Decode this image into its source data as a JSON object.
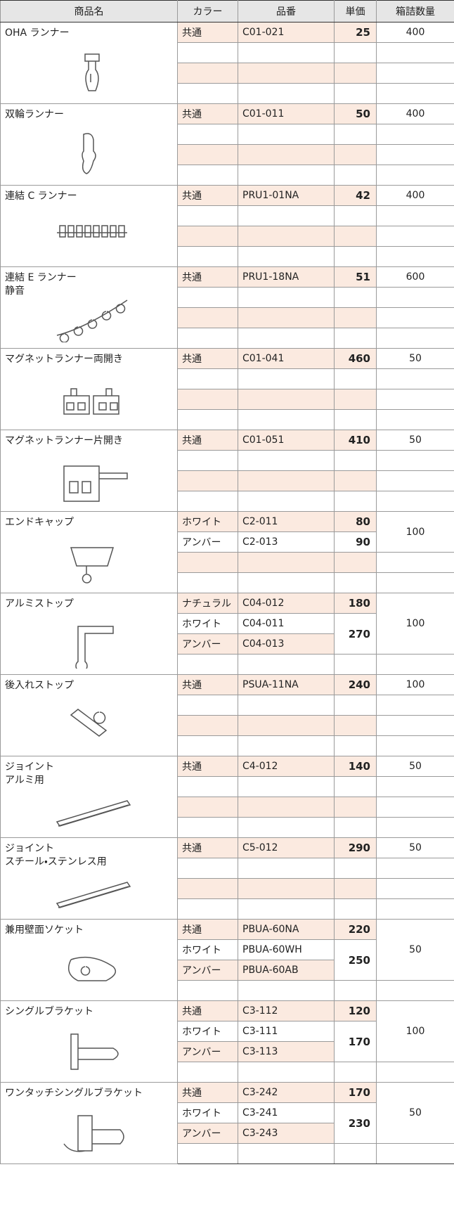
{
  "header": [
    "商品名",
    "カラー",
    "品番",
    "単価",
    "箱詰数量"
  ],
  "products": [
    {
      "name": [
        "OHA ランナー"
      ],
      "groups": [
        {
          "price": 25,
          "items": [
            {
              "color": "共通",
              "code": "C01-021"
            }
          ]
        }
      ],
      "box": 400
    },
    {
      "name": [
        "双輪ランナー"
      ],
      "groups": [
        {
          "price": 50,
          "items": [
            {
              "color": "共通",
              "code": "C01-011"
            }
          ]
        }
      ],
      "box": 400
    },
    {
      "name": [
        "連結 C ランナー"
      ],
      "groups": [
        {
          "price": 42,
          "items": [
            {
              "color": "共通",
              "code": "PRU1-01NA"
            }
          ]
        }
      ],
      "box": 400
    },
    {
      "name": [
        "連結 E ランナー",
        "静音"
      ],
      "groups": [
        {
          "price": 51,
          "items": [
            {
              "color": "共通",
              "code": "PRU1-18NA"
            }
          ]
        }
      ],
      "box": 600
    },
    {
      "name": [
        "マグネットランナー両開き"
      ],
      "groups": [
        {
          "price": 460,
          "items": [
            {
              "color": "共通",
              "code": "C01-041"
            }
          ]
        }
      ],
      "box": 50
    },
    {
      "name": [
        "マグネットランナー片開き"
      ],
      "groups": [
        {
          "price": 410,
          "items": [
            {
              "color": "共通",
              "code": "C01-051"
            }
          ]
        }
      ],
      "box": 50
    },
    {
      "name": [
        "エンドキャップ"
      ],
      "groups": [
        {
          "price": 80,
          "items": [
            {
              "color": "ホワイト",
              "code": "C2-011"
            }
          ]
        },
        {
          "price": 90,
          "items": [
            {
              "color": "アンバー",
              "code": "C2-013"
            }
          ]
        }
      ],
      "box": 100
    },
    {
      "name": [
        "アルミストップ"
      ],
      "groups": [
        {
          "price": 180,
          "items": [
            {
              "color": "ナチュラル",
              "code": "C04-012"
            }
          ]
        },
        {
          "price": 270,
          "items": [
            {
              "color": "ホワイト",
              "code": "C04-011"
            },
            {
              "color": "アンバー",
              "code": "C04-013"
            }
          ]
        }
      ],
      "box": 100
    },
    {
      "name": [
        "後入れストップ"
      ],
      "groups": [
        {
          "price": 240,
          "items": [
            {
              "color": "共通",
              "code": "PSUA-11NA"
            }
          ]
        }
      ],
      "box": 100
    },
    {
      "name": [
        "ジョイント",
        "アルミ用"
      ],
      "groups": [
        {
          "price": 140,
          "items": [
            {
              "color": "共通",
              "code": "C4-012"
            }
          ]
        }
      ],
      "box": 50
    },
    {
      "name": [
        "ジョイント",
        "スチール・ステンレス用"
      ],
      "groups": [
        {
          "price": 290,
          "items": [
            {
              "color": "共通",
              "code": "C5-012"
            }
          ]
        }
      ],
      "box": 50
    },
    {
      "name": [
        "兼用壁面ソケット"
      ],
      "groups": [
        {
          "price": 220,
          "items": [
            {
              "color": "共通",
              "code": "PBUA-60NA"
            }
          ]
        },
        {
          "price": 250,
          "items": [
            {
              "color": "ホワイト",
              "code": "PBUA-60WH"
            },
            {
              "color": "アンバー",
              "code": "PBUA-60AB"
            }
          ]
        }
      ],
      "box": 50
    },
    {
      "name": [
        "シングルブラケット"
      ],
      "groups": [
        {
          "price": 120,
          "items": [
            {
              "color": "共通",
              "code": "C3-112"
            }
          ]
        },
        {
          "price": 170,
          "items": [
            {
              "color": "ホワイト",
              "code": "C3-111"
            },
            {
              "color": "アンバー",
              "code": "C3-113"
            }
          ]
        }
      ],
      "box": 100
    },
    {
      "name": [
        "ワンタッチシングルブラケット"
      ],
      "groups": [
        {
          "price": 170,
          "items": [
            {
              "color": "共通",
              "code": "C3-242"
            }
          ]
        },
        {
          "price": 230,
          "items": [
            {
              "color": "ホワイト",
              "code": "C3-241"
            },
            {
              "color": "アンバー",
              "code": "C3-243"
            }
          ]
        }
      ],
      "box": 50
    }
  ]
}
